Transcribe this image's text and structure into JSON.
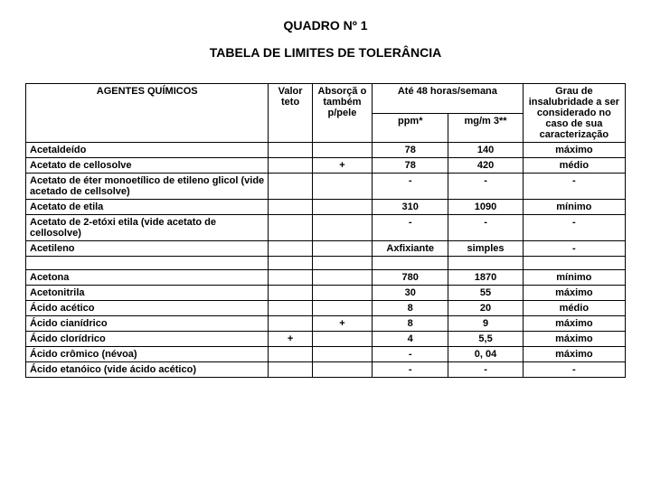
{
  "title1": "QUADRO Nº 1",
  "title2": "TABELA DE LIMITES DE TOLERÂNCIA",
  "headers": {
    "agentes": "AGENTES QUÍMICOS",
    "valor_teto": "Valor teto",
    "absorcao": "Absorçã o também p/pele",
    "ate48": "Até 48 horas/semana",
    "ppm": "ppm*",
    "mgm3": "mg/m 3**",
    "grau": "Grau de insalubridade a ser considerado no caso de sua caracterização"
  },
  "rows": [
    {
      "agente": "Acetaldeído",
      "valor": "",
      "absor": "",
      "ppm": "78",
      "mgm3": "140",
      "grau": "máximo"
    },
    {
      "agente": "Acetato de cellosolve",
      "valor": "",
      "absor": "+",
      "ppm": "78",
      "mgm3": "420",
      "grau": "médio"
    },
    {
      "agente": "Acetato de éter monoetílico de etileno glicol (vide acetado de cellsolve)",
      "valor": "",
      "absor": "",
      "ppm": "-",
      "mgm3": "-",
      "grau": "-"
    },
    {
      "agente": "Acetato de etila",
      "valor": "",
      "absor": "",
      "ppm": "310",
      "mgm3": "1090",
      "grau": "mínimo"
    },
    {
      "agente": "Acetato de 2-etóxi etila (vide acetato de cellosolve)",
      "valor": "",
      "absor": "",
      "ppm": "-",
      "mgm3": "-",
      "grau": "-"
    },
    {
      "agente": "Acetileno",
      "valor": "",
      "absor": "",
      "ppm": "Axfixiante",
      "mgm3": "simples",
      "grau": "-"
    }
  ],
  "rows2": [
    {
      "agente": "Acetona",
      "valor": "",
      "absor": "",
      "ppm": "780",
      "mgm3": "1870",
      "grau": "mínimo"
    },
    {
      "agente": "Acetonitrila",
      "valor": "",
      "absor": "",
      "ppm": "30",
      "mgm3": "55",
      "grau": "máximo"
    },
    {
      "agente": "Ácido acético",
      "valor": "",
      "absor": "",
      "ppm": "8",
      "mgm3": "20",
      "grau": "médio"
    },
    {
      "agente": "Ácido cianídrico",
      "valor": "",
      "absor": "+",
      "ppm": "8",
      "mgm3": "9",
      "grau": "máximo"
    },
    {
      "agente": "Ácido clorídrico",
      "valor": "+",
      "absor": "",
      "ppm": "4",
      "mgm3": "5,5",
      "grau": "máximo"
    },
    {
      "agente": "Ácido crômico (névoa)",
      "valor": "",
      "absor": "",
      "ppm": "-",
      "mgm3": "0, 04",
      "grau": "máximo"
    },
    {
      "agente": "Ácido etanóico (vide ácido acético)",
      "valor": "",
      "absor": "",
      "ppm": "-",
      "mgm3": "-",
      "grau": "-"
    }
  ]
}
